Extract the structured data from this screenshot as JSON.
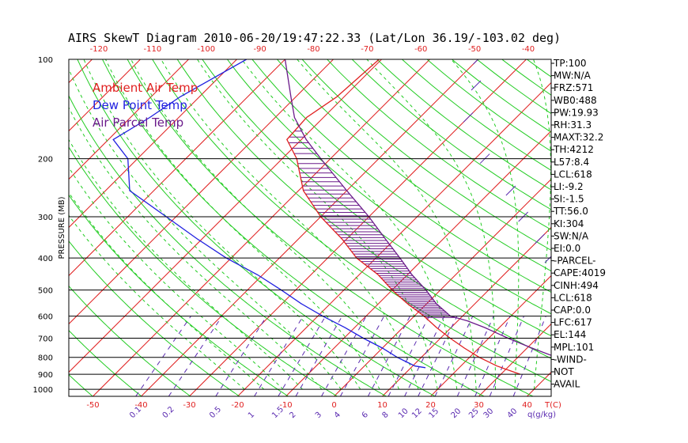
{
  "chart_data": {
    "type": "line",
    "title": "AIRS SkewT Diagram 2010-06-20/19:47:22.33 (Lat/Lon 36.19/-103.02 deg)",
    "ylabel": "PRESSURE (MB)",
    "temp_axis_label": "T(C)",
    "mixing_axis_label": "q(g/kg)",
    "y_scale": "log",
    "ylim": [
      1050,
      100
    ],
    "xlim_bottom": [
      -55,
      45
    ],
    "pressure_ticks": [
      100,
      200,
      300,
      400,
      500,
      600,
      700,
      800,
      900,
      1000
    ],
    "bottom_temp_ticks": [
      -50,
      -40,
      -30,
      -20,
      -10,
      0,
      10,
      20,
      30,
      40
    ],
    "top_temp_ticks": [
      -120,
      -110,
      -100,
      -90,
      -80,
      -70,
      -60,
      -50,
      -40
    ],
    "mixing_ratio_ticks": [
      "0.1",
      "0.2",
      "0.5",
      "1",
      "1.5",
      "2",
      "3",
      "4",
      "6",
      "8",
      "10",
      "12",
      "15",
      "20",
      "25",
      "30",
      "40"
    ],
    "colors": {
      "ambient": "#e02020",
      "dewpoint": "#2020e0",
      "parcel": "#6a1a8a",
      "isotherm": "#e02020",
      "dry_adiabat": "#22cc22",
      "moist_adiabat": "#22cc22",
      "mixing_ratio": "#5a2ab0",
      "cape_hatch": "#6a1a8a",
      "grid": "#000000"
    },
    "legend_position": "top-left",
    "series": [
      {
        "name": "Ambient Air Temp",
        "points": [
          [
            100,
            -60.5
          ],
          [
            130,
            -61.5
          ],
          [
            150,
            -63.5
          ],
          [
            175,
            -63
          ],
          [
            200,
            -57
          ],
          [
            250,
            -49
          ],
          [
            300,
            -40
          ],
          [
            350,
            -31
          ],
          [
            400,
            -24
          ],
          [
            450,
            -16
          ],
          [
            500,
            -10
          ],
          [
            550,
            -4
          ],
          [
            600,
            2
          ],
          [
            650,
            7
          ],
          [
            700,
            12
          ],
          [
            750,
            17
          ],
          [
            800,
            22
          ],
          [
            850,
            27.5
          ],
          [
            900,
            34
          ]
        ]
      },
      {
        "name": "Dew Point Temp",
        "points": [
          [
            100,
            -88
          ],
          [
            130,
            -94
          ],
          [
            150,
            -96
          ],
          [
            175,
            -99
          ],
          [
            200,
            -92
          ],
          [
            250,
            -85
          ],
          [
            300,
            -72
          ],
          [
            350,
            -61
          ],
          [
            400,
            -51
          ],
          [
            450,
            -41
          ],
          [
            500,
            -33
          ],
          [
            550,
            -26
          ],
          [
            600,
            -19
          ],
          [
            650,
            -12
          ],
          [
            700,
            -6
          ],
          [
            750,
            0
          ],
          [
            800,
            5
          ],
          [
            850,
            10.5
          ],
          [
            860,
            13
          ]
        ]
      },
      {
        "name": "Air Parcel Temp",
        "points": [
          [
            100,
            -80
          ],
          [
            130,
            -71
          ],
          [
            150,
            -66
          ],
          [
            175,
            -59
          ],
          [
            200,
            -52
          ],
          [
            250,
            -40
          ],
          [
            300,
            -30
          ],
          [
            350,
            -22
          ],
          [
            400,
            -15
          ],
          [
            450,
            -9
          ],
          [
            500,
            -3
          ],
          [
            550,
            2
          ],
          [
            600,
            7.5
          ],
          [
            620,
            12
          ],
          [
            650,
            17
          ],
          [
            700,
            24
          ],
          [
            750,
            31
          ],
          [
            800,
            38
          ],
          [
            815,
            40
          ]
        ]
      }
    ],
    "wind_profile": [
      [
        100,
        -40
      ],
      [
        120,
        -35
      ],
      [
        150,
        -30
      ],
      [
        200,
        -18
      ],
      [
        250,
        -6
      ],
      [
        300,
        2
      ],
      [
        350,
        10
      ],
      [
        400,
        16
      ],
      [
        450,
        22
      ],
      [
        500,
        28
      ],
      [
        550,
        35
      ],
      [
        600,
        40
      ]
    ],
    "indices": [
      "TP:100",
      "MW:N/A",
      "FRZ:571",
      "WB0:488",
      "PW:19.93",
      "RH:31.3",
      "MAXT:32.2",
      "TH:4212",
      "L57:8.4",
      "LCL:618",
      "LI:-9.2",
      "SI:-1.5",
      "TT:56.0",
      "KI:304",
      "SW:N/A",
      "EI:0.0",
      "-PARCEL-",
      "CAPE:4019",
      "CINH:494",
      "LCL:618",
      "CAP:0.0",
      "LFC:617",
      "EL:144",
      "MPL:101",
      "-WIND-",
      "NOT",
      "AVAIL"
    ]
  }
}
